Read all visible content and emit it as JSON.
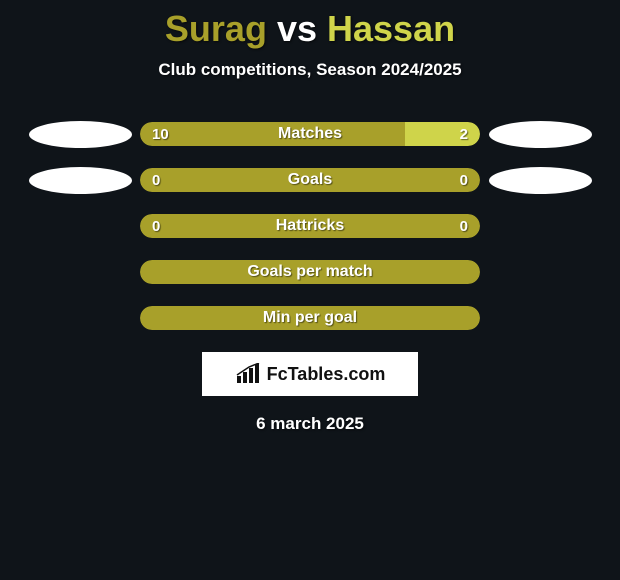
{
  "background_color": "#0f1419",
  "title": {
    "player1": "Surag",
    "vs": "vs",
    "player2": "Hassan",
    "player1_color": "#a8a02a",
    "vs_color": "#ffffff",
    "player2_color": "#cfd44a",
    "fontsize": 36
  },
  "subtitle": "Club competitions, Season 2024/2025",
  "avatars": {
    "left_row1_visible": true,
    "left_row2_visible": true,
    "right_row1_visible": true,
    "right_row2_visible": true,
    "fill": "#ffffff",
    "width": 103,
    "height": 27
  },
  "bar_colors": {
    "player1": "#a8a02a",
    "player2": "#cfd44a",
    "label_text": "#ffffff"
  },
  "rows": [
    {
      "label": "Matches",
      "left_value": "10",
      "right_value": "2",
      "left_pct": 78,
      "right_pct": 22,
      "show_avatars": true
    },
    {
      "label": "Goals",
      "left_value": "0",
      "right_value": "0",
      "left_pct": 100,
      "right_pct": 0,
      "show_avatars": true
    },
    {
      "label": "Hattricks",
      "left_value": "0",
      "right_value": "0",
      "left_pct": 100,
      "right_pct": 0,
      "show_avatars": false
    },
    {
      "label": "Goals per match",
      "left_value": "",
      "right_value": "",
      "left_pct": 100,
      "right_pct": 0,
      "show_avatars": false
    },
    {
      "label": "Min per goal",
      "left_value": "",
      "right_value": "",
      "left_pct": 100,
      "right_pct": 0,
      "show_avatars": false
    }
  ],
  "branding": {
    "text": "FcTables.com",
    "background": "#ffffff",
    "text_color": "#111111",
    "icon_color": "#111111"
  },
  "date": "6 march 2025"
}
